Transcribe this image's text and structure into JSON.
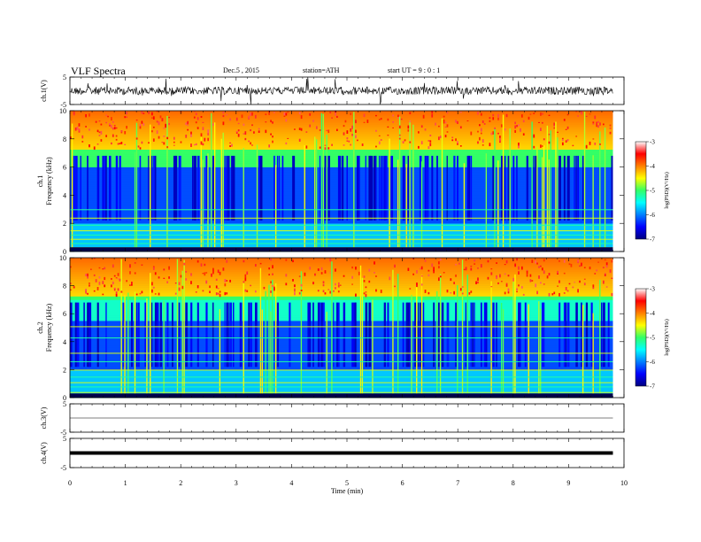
{
  "header": {
    "title": "VLF  Spectra",
    "date": "Dec.5  , 2015",
    "station": "station=ATH",
    "start_ut": "start  UT  =   9  : 0  : 1"
  },
  "chart_data": {
    "type": "heatmap",
    "title": "VLF  Spectra",
    "xlabel": "Time  (min)",
    "x_ticks": [
      "0",
      "1",
      "2",
      "3",
      "4",
      "5",
      "6",
      "7",
      "8",
      "9",
      "10"
    ],
    "xlim": [
      0,
      10
    ],
    "data_end_min": 9.8,
    "channels": [
      {
        "name": "ch.1",
        "ylabel": "ch.1(V)",
        "kind": "waveform",
        "ylim": [
          -5,
          5
        ],
        "y_ticks": [
          "5",
          "-5"
        ]
      },
      {
        "name": "ch.1",
        "ylabel": "ch.1",
        "ylabel2": "Frequency  (kHz)",
        "kind": "spectrogram",
        "ylim": [
          0,
          10
        ],
        "y_ticks": [
          "0",
          "2",
          "4",
          "6",
          "8",
          "10"
        ]
      },
      {
        "name": "ch.2",
        "ylabel": "ch.2",
        "ylabel2": "Frequency  (kHz)",
        "kind": "spectrogram",
        "ylim": [
          0,
          10
        ],
        "y_ticks": [
          "0",
          "2",
          "4",
          "6",
          "8",
          "10"
        ]
      },
      {
        "name": "ch.3",
        "ylabel": "ch.3(V)",
        "kind": "waveform",
        "ylim": [
          -5,
          5
        ],
        "y_ticks": [
          "5",
          "-5"
        ]
      },
      {
        "name": "ch.4",
        "ylabel": "ch.4(V)",
        "kind": "waveform",
        "ylim": [
          -5,
          5
        ],
        "y_ticks": [
          "5",
          "-5"
        ]
      }
    ],
    "colorbar": {
      "label": "log(PSD)(V²/Hz)",
      "range": [
        -7,
        -3
      ],
      "ticks": [
        "-3",
        "-4",
        "-5",
        "-6",
        "-7"
      ]
    }
  }
}
